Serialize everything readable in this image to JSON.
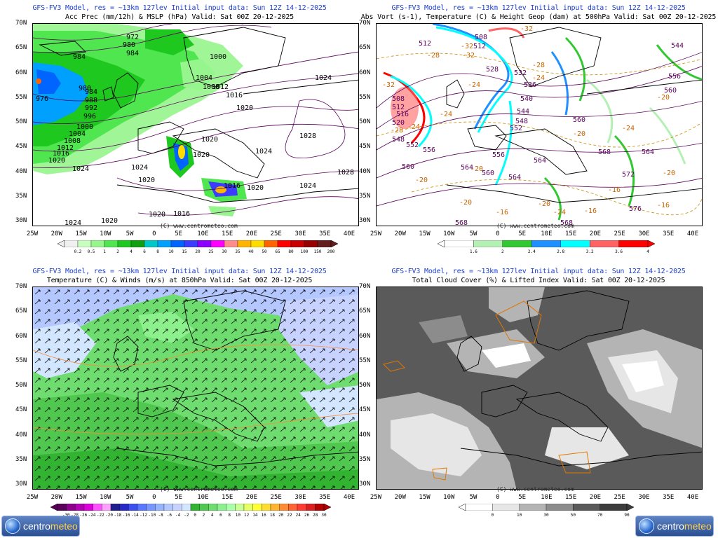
{
  "panels": [
    {
      "model_line": "GFS-FV3 Model, res = ~13km 127lev   Initial input data: Sun 12Z 14-12-2025",
      "title": "Acc Prec (mm/12h) & MSLP (hPa)  Valid: Sat 00Z 20-12-2025",
      "colorbar_labels": [
        "0.2",
        "0.5",
        "1",
        "2",
        "4",
        "6",
        "8",
        "10",
        "15",
        "20",
        "25",
        "30",
        "35",
        "40",
        "50",
        "65",
        "80",
        "100",
        "150",
        "200"
      ],
      "watermark": "(C) www.centrometeo.com",
      "contour_labels": [
        "972",
        "980",
        "984",
        "984",
        "1000",
        "1004",
        "1008",
        "1012",
        "1016",
        "976",
        "984",
        "988",
        "992",
        "996",
        "1000",
        "1004",
        "1008",
        "1012",
        "1016",
        "1020",
        "1024",
        "1020",
        "1024",
        "1024",
        "1028",
        "1028",
        "1024",
        "1020",
        "1020",
        "1016",
        "1020",
        "1016",
        "1020",
        "1024",
        "1020",
        "1016",
        "1020",
        "1024",
        "1024"
      ]
    },
    {
      "model_line": "GFS-FV3 Model, res = ~13km 127lev   Initial input data: Sun 12Z 14-12-2025",
      "title": "Abs Vort (s-1), Temperature (C) & Height Geop (dam) at 500hPa  Valid: Sat 00Z 20-12-2025",
      "colorbar_labels": [
        "1.6",
        "2",
        "2.4",
        "2.8",
        "3.2",
        "3.6",
        "4"
      ],
      "watermark": "(C) www.centrometeo.com",
      "contour_labels": [
        "508",
        "512",
        "512",
        "528",
        "-32",
        "-28",
        "520",
        "524",
        "532",
        "536",
        "540",
        "544",
        "548",
        "552",
        "556",
        "560",
        "564",
        "568",
        "572",
        "576",
        "544",
        "556",
        "560",
        "-24",
        "-20",
        "-24",
        "-20",
        "-16",
        "-20",
        "-16",
        "-20",
        "-24",
        "-32",
        "-28",
        "-24",
        "-20",
        "-16",
        "-20"
      ]
    },
    {
      "model_line": "GFS-FV3 Model, res = ~13km 127lev   Initial input data: Sun 12Z 14-12-2025",
      "title": "Temperature (C) & Winds (m/s) at 850hPa  Valid: Sat 00Z 20-12-2025",
      "colorbar_labels": [
        "-30",
        "-28",
        "-26",
        "-24",
        "-22",
        "-20",
        "-18",
        "-16",
        "-14",
        "-12",
        "-10",
        "-8",
        "-6",
        "-4",
        "-2",
        "0",
        "2",
        "4",
        "6",
        "8",
        "10",
        "12",
        "14",
        "16",
        "18",
        "20",
        "22",
        "24",
        "26",
        "28",
        "30"
      ],
      "watermark": "(C) www.centrometeo.com"
    },
    {
      "model_line": "GFS-FV3 Model, res = ~13km 127lev   Initial input data: Sun 12Z 14-12-2025",
      "title": "Total Cloud Cover (%) & Lifted Index  Valid: Sat 00Z 20-12-2025",
      "colorbar_labels": [
        "0",
        "10",
        "30",
        "50",
        "70",
        "90"
      ],
      "watermark": "(C) www.centrometeo.com"
    }
  ],
  "lat_labels": [
    "70N",
    "65N",
    "60N",
    "55N",
    "50N",
    "45N",
    "40N",
    "35N",
    "30N"
  ],
  "lon_labels": [
    "25W",
    "20W",
    "15W",
    "10W",
    "5W",
    "0",
    "5E",
    "10E",
    "15E",
    "20E",
    "25E",
    "30E",
    "35E",
    "40E"
  ],
  "logo": {
    "text_a": "centro",
    "text_b": "meteo"
  },
  "colors": {
    "prec": [
      "#f0f0f0",
      "#c8ffbe",
      "#96f58c",
      "#50e650",
      "#1ec81e",
      "#0fa00f",
      "#00c8c8",
      "#00a0ff",
      "#0064ff",
      "#3c3cff",
      "#8c00ff",
      "#ff00ff",
      "#ff8c8c",
      "#ffb400",
      "#ffdc00",
      "#ff6400",
      "#ff0000",
      "#c80000",
      "#960000",
      "#641e1e"
    ],
    "vort": [
      "#ffffff",
      "#b4f0b4",
      "#32c832",
      "#1e90ff",
      "#00ffff",
      "#ff6464",
      "#ff0000"
    ],
    "temp": [
      "#5a005a",
      "#8c008c",
      "#b400b4",
      "#dc00dc",
      "#ff50ff",
      "#ffa0ff",
      "#1e1e8c",
      "#2828c8",
      "#3c50f0",
      "#5a78ff",
      "#7896ff",
      "#96b4ff",
      "#b4c8ff",
      "#c8d2ff",
      "#d2e6ff",
      "#32b432",
      "#50c850",
      "#6edc6e",
      "#8cf08c",
      "#aaffaa",
      "#c8ff96",
      "#e6ff64",
      "#ffff32",
      "#ffdc32",
      "#ffb432",
      "#ff8c32",
      "#ff6432",
      "#ff3c32",
      "#dc1e1e",
      "#b40000"
    ],
    "cloud": [
      "#ffffff",
      "#e6e6e6",
      "#b4b4b4",
      "#8c8c8c",
      "#5a5a5a",
      "#3c3c3c"
    ]
  }
}
